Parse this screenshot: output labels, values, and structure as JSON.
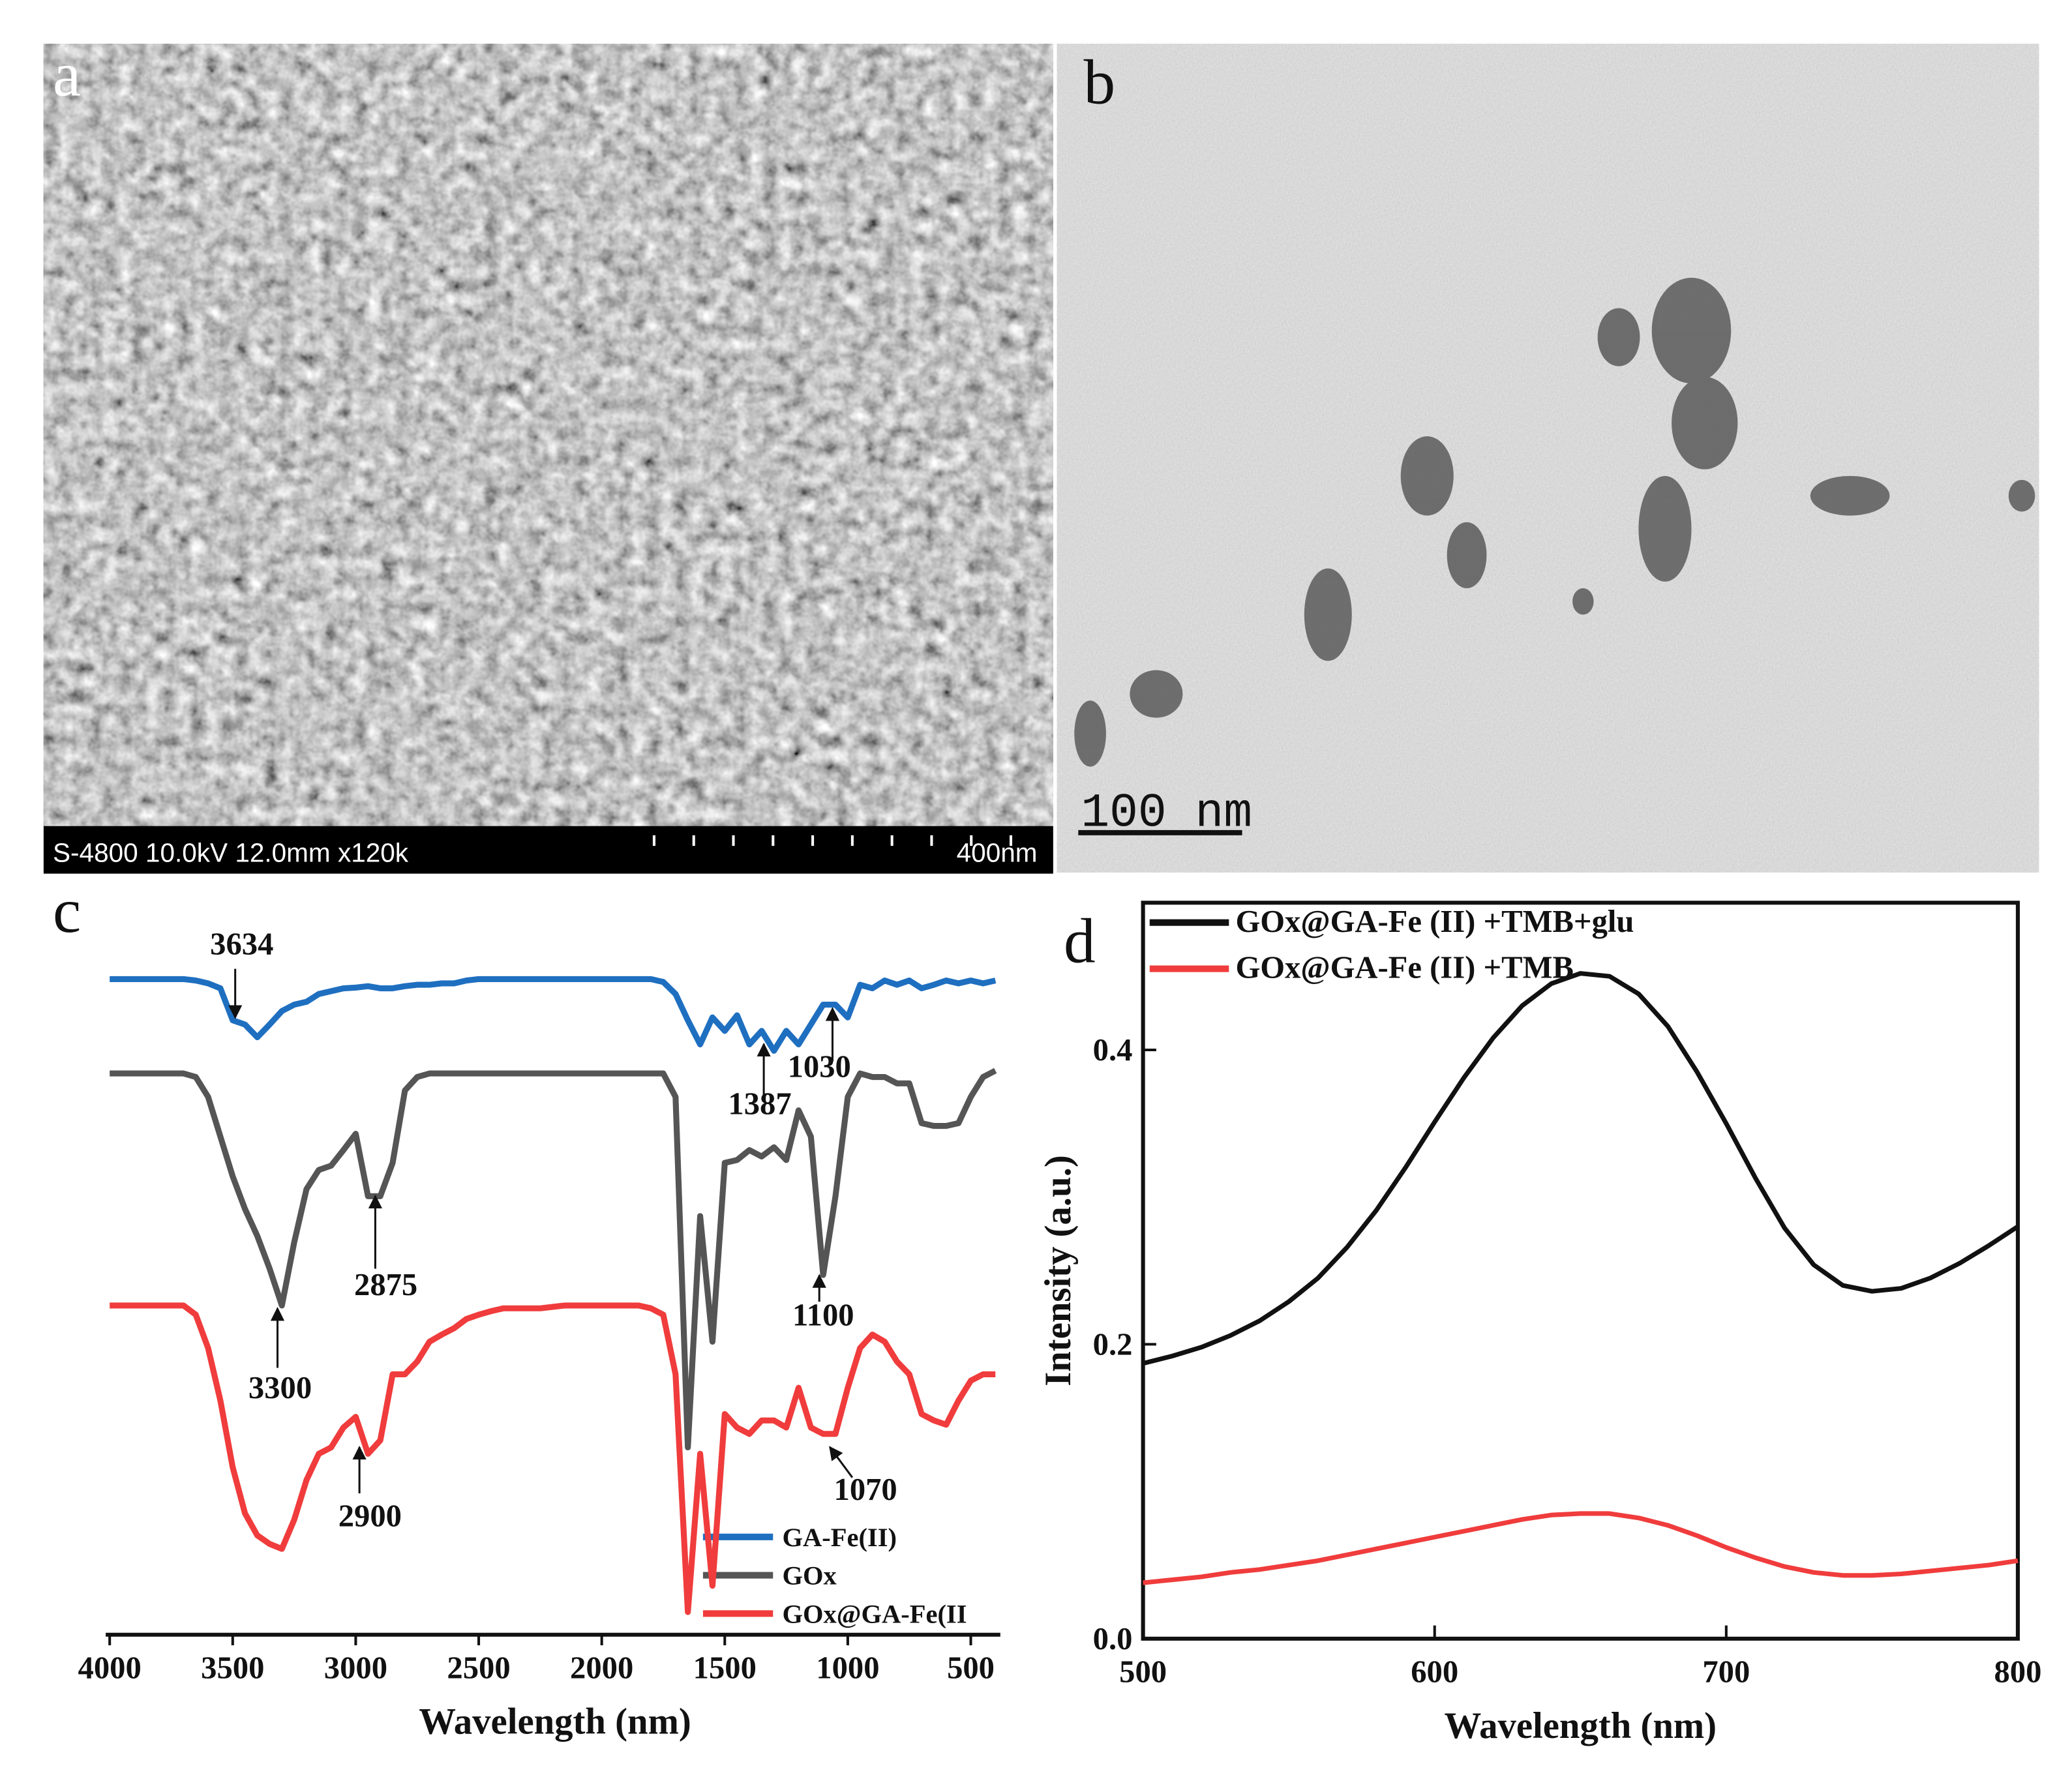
{
  "images": [
    {
      "label": "a",
      "info": "S-4800 10.0kV 12.0mm x120k",
      "scale": "400nm"
    },
    {
      "label": "b",
      "scale": "100 nm"
    }
  ],
  "chart_data": [
    {
      "type": "line",
      "label": "c",
      "x_label": "Wavelength (nm)",
      "x": [
        4000,
        3950,
        3900,
        3850,
        3800,
        3750,
        3700,
        3650,
        3600,
        3550,
        3500,
        3450,
        3400,
        3350,
        3300,
        3250,
        3200,
        3150,
        3100,
        3050,
        3000,
        2950,
        2900,
        2850,
        2800,
        2750,
        2700,
        2650,
        2600,
        2550,
        2500,
        2450,
        2400,
        2350,
        2300,
        2250,
        2200,
        2150,
        2100,
        2050,
        2000,
        1950,
        1900,
        1850,
        1800,
        1750,
        1700,
        1650,
        1600,
        1550,
        1500,
        1450,
        1400,
        1350,
        1300,
        1250,
        1200,
        1150,
        1100,
        1050,
        1000,
        950,
        900,
        850,
        800,
        750,
        700,
        650,
        600,
        550,
        500,
        450,
        400
      ],
      "xlim": [
        4000,
        380
      ],
      "xticks": [
        4000,
        3500,
        3000,
        2500,
        2000,
        1500,
        1000,
        500
      ],
      "ylim": [
        0,
        100
      ],
      "series": [
        {
          "name": "GA-Fe(II)",
          "color": "#1f6fc0",
          "values": [
            92.4,
            92.4,
            92.4,
            92.4,
            92.4,
            92.4,
            92.4,
            92.2,
            91.8,
            91.1,
            86.6,
            86.0,
            84.2,
            86.0,
            87.9,
            88.8,
            89.2,
            90.3,
            90.7,
            91.1,
            91.2,
            91.4,
            91.1,
            91.1,
            91.4,
            91.6,
            91.6,
            91.8,
            91.8,
            92.2,
            92.4,
            92.4,
            92.4,
            92.4,
            92.4,
            92.4,
            92.4,
            92.4,
            92.4,
            92.4,
            92.4,
            92.4,
            92.4,
            92.4,
            92.4,
            92.0,
            90.3,
            86.6,
            83.2,
            87.0,
            85.1,
            87.3,
            83.2,
            85.1,
            82.3,
            85.1,
            83.2,
            86.0,
            88.8,
            88.8,
            87.0,
            91.6,
            91.1,
            92.2,
            91.6,
            92.2,
            91.1,
            91.6,
            92.2,
            91.8,
            92.2,
            91.8,
            92.2
          ]
        },
        {
          "name": "GOx",
          "color": "#555555",
          "values": [
            79.1,
            79.1,
            79.1,
            79.1,
            79.1,
            79.1,
            79.1,
            78.6,
            75.8,
            70.2,
            64.6,
            60.0,
            56.2,
            51.6,
            46.4,
            55.3,
            62.8,
            65.5,
            66.1,
            68.3,
            70.6,
            61.8,
            61.8,
            66.5,
            76.7,
            78.6,
            79.1,
            79.1,
            79.1,
            79.1,
            79.1,
            79.1,
            79.1,
            79.1,
            79.1,
            79.1,
            79.1,
            79.1,
            79.1,
            79.1,
            79.1,
            79.1,
            79.1,
            79.1,
            79.1,
            79.1,
            75.8,
            26.4,
            59.0,
            41.3,
            66.5,
            66.9,
            68.3,
            67.4,
            68.7,
            66.9,
            73.9,
            70.2,
            50.7,
            61.8,
            75.8,
            79.1,
            78.6,
            78.6,
            77.7,
            77.7,
            72.1,
            71.7,
            71.7,
            72.1,
            75.8,
            78.6,
            79.5
          ]
        },
        {
          "name": "GOx@GA-Fe(II",
          "color": "#f03c3c",
          "values": [
            46.4,
            46.4,
            46.4,
            46.4,
            46.4,
            46.4,
            46.4,
            45.1,
            40.4,
            33.0,
            23.6,
            17.1,
            14.0,
            12.8,
            12.1,
            16.2,
            21.8,
            25.5,
            26.4,
            29.2,
            30.7,
            25.5,
            27.4,
            36.7,
            36.7,
            38.5,
            41.3,
            42.3,
            43.2,
            44.5,
            45.1,
            45.6,
            46.0,
            46.0,
            46.0,
            46.0,
            46.2,
            46.4,
            46.4,
            46.4,
            46.4,
            46.4,
            46.4,
            46.4,
            46.0,
            45.1,
            36.7,
            3.2,
            25.5,
            6.9,
            31.1,
            29.2,
            28.3,
            30.2,
            30.2,
            29.2,
            34.8,
            29.2,
            28.3,
            28.3,
            34.8,
            40.4,
            42.3,
            41.3,
            38.5,
            36.7,
            31.1,
            30.2,
            29.6,
            33.0,
            35.8,
            36.7,
            36.7
          ]
        }
      ],
      "annotations": [
        "3634",
        "1387",
        "1030",
        "2875",
        "3300",
        "1100",
        "2900",
        "1070"
      ]
    },
    {
      "type": "line",
      "label": "d",
      "x_label": "Wavelength (nm)",
      "y_label": "Intensity (a.u.)",
      "x": [
        500,
        510,
        520,
        530,
        540,
        550,
        560,
        570,
        580,
        590,
        600,
        610,
        620,
        630,
        640,
        650,
        660,
        670,
        680,
        690,
        700,
        710,
        720,
        730,
        740,
        750,
        760,
        770,
        780,
        790,
        800
      ],
      "xlim": [
        500,
        800
      ],
      "xticks": [
        500,
        600,
        700,
        800
      ],
      "ylim": [
        0,
        0.5
      ],
      "yticks": [
        {
          "value": 0,
          "label": "0.0"
        },
        0.2,
        0.4
      ],
      "series": [
        {
          "name": "GOx@GA-Fe (II) +TMB+glu",
          "color": "#111111",
          "values": [
            0.187,
            0.192,
            0.198,
            0.206,
            0.216,
            0.229,
            0.245,
            0.266,
            0.291,
            0.32,
            0.351,
            0.381,
            0.408,
            0.43,
            0.445,
            0.452,
            0.45,
            0.438,
            0.416,
            0.385,
            0.35,
            0.313,
            0.279,
            0.254,
            0.24,
            0.236,
            0.238,
            0.245,
            0.255,
            0.267,
            0.28
          ]
        },
        {
          "name": "GOx@GA-Fe (II) +TMB",
          "color": "#f03c3c",
          "values": [
            0.038,
            0.04,
            0.042,
            0.045,
            0.047,
            0.05,
            0.053,
            0.057,
            0.061,
            0.065,
            0.069,
            0.073,
            0.077,
            0.081,
            0.084,
            0.085,
            0.085,
            0.082,
            0.077,
            0.07,
            0.062,
            0.055,
            0.049,
            0.045,
            0.043,
            0.043,
            0.044,
            0.046,
            0.048,
            0.05,
            0.053
          ]
        }
      ]
    }
  ]
}
